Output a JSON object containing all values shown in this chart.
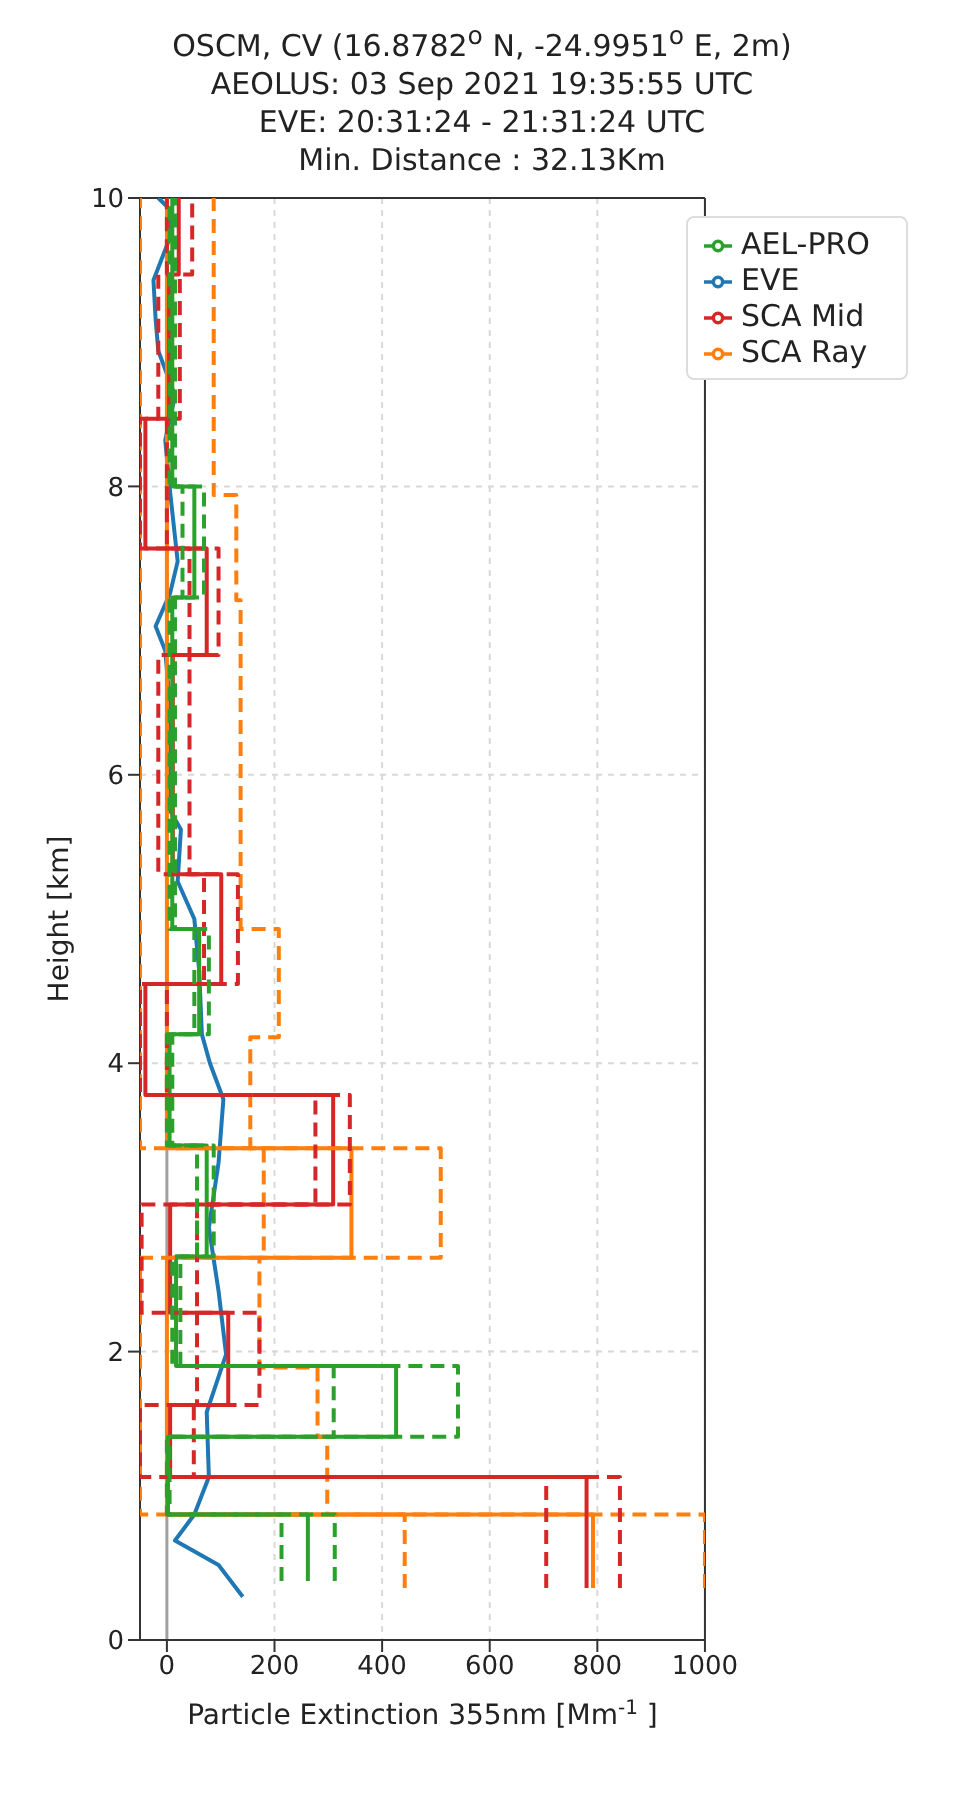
{
  "chart_data": {
    "type": "line",
    "title": "OSCM, CV (16.8782$^{o}$ N, -24.9951$^{o}$ E, 2m)",
    "subtitle": "AEOLUS: 03 Sep 2021 19:35:55 UTC\nEVE: 20:31:24 - 21:31:24 UTC\nMin. Distance : 32.13Km",
    "xlabel": "Particle Extinction 355nm [Mm$^{-1}$]",
    "ylabel": "Height [km]",
    "xlim": [
      -50,
      1000
    ],
    "xticks": [
      0,
      200,
      400,
      600,
      800,
      1000
    ],
    "ylim": [
      0,
      10
    ],
    "yticks": [
      0,
      2,
      4,
      6,
      8,
      10
    ],
    "grid": true,
    "legend": "top right",
    "marker": "none",
    "ref_lines": [
      {
        "axis": "x",
        "value": 0,
        "color": "#a0a0a0"
      }
    ],
    "series": [
      {
        "name": "EVE",
        "color": "#1f77b4",
        "line_style": "solid",
        "x": [
          141,
          96,
          15,
          51,
          78,
          74,
          110,
          96,
          78,
          96,
          105,
          80,
          65,
          60,
          51,
          20,
          26,
          6,
          6,
          6,
          -3,
          -21,
          6,
          20,
          6,
          -3,
          15,
          -16,
          -21,
          -25,
          2,
          6,
          -16
        ],
        "values": [
          0.3,
          0.52,
          0.69,
          0.87,
          1.13,
          1.58,
          1.98,
          2.42,
          2.86,
          3.31,
          3.75,
          4.0,
          4.2,
          4.64,
          5.0,
          5.26,
          5.62,
          5.75,
          6.15,
          6.46,
          6.86,
          7.03,
          7.26,
          7.48,
          7.96,
          8.32,
          8.63,
          8.94,
          9.16,
          9.43,
          9.69,
          9.92,
          10
        ]
      },
      {
        "name": "SCA Ray",
        "color": "#ff7f0e",
        "line_style": "solid",
        "x": [
          792,
          792,
          0,
          0,
          343,
          343,
          0,
          0
        ],
        "values": [
          0.36,
          0.87,
          0.87,
          2.65,
          2.65,
          3.41,
          3.41,
          10
        ]
      },
      {
        "name": "SCA Mid",
        "color": "#d62728",
        "line_style": "solid",
        "x": [
          780,
          780,
          6,
          6,
          114,
          114,
          6,
          6,
          309,
          309,
          -40,
          -40,
          101,
          101,
          11,
          11,
          74,
          74,
          -40,
          -40,
          4,
          4,
          22,
          22
        ],
        "values": [
          0.36,
          1.13,
          1.13,
          1.63,
          1.63,
          2.27,
          2.27,
          3.02,
          3.02,
          3.78,
          3.78,
          4.55,
          4.55,
          5.31,
          5.31,
          6.83,
          6.83,
          7.57,
          7.57,
          8.47,
          8.47,
          9.47,
          9.47,
          10
        ]
      },
      {
        "name": "AEL-PRO",
        "color": "#2ca02c",
        "line_style": "solid",
        "x": [
          262,
          262,
          2,
          2,
          426,
          426,
          17,
          17,
          74,
          74,
          5,
          5,
          60,
          60,
          10,
          10,
          51,
          51,
          10,
          10
        ],
        "values": [
          0.41,
          0.87,
          0.87,
          1.41,
          1.41,
          1.9,
          1.9,
          2.66,
          2.66,
          3.43,
          3.43,
          4.2,
          4.2,
          4.93,
          4.93,
          7.23,
          7.23,
          8.0,
          8.0,
          10
        ]
      },
      {
        "color": "#ff7f0e",
        "line_style": "dashed",
        "x": [
          442,
          442,
          -50,
          -50,
          180,
          180,
          -50,
          -50
        ],
        "values": [
          0.36,
          0.87,
          0.87,
          2.65,
          2.65,
          3.41,
          3.41,
          10
        ]
      },
      {
        "color": "#ff7f0e",
        "line_style": "dashed",
        "x": [
          1000,
          1000,
          298,
          298,
          280,
          280,
          172,
          172,
          509,
          509,
          155,
          155,
          208,
          208,
          137,
          137,
          129,
          129,
          87,
          87
        ],
        "values": [
          0.36,
          0.87,
          0.87,
          1.41,
          1.41,
          1.89,
          1.89,
          2.65,
          2.65,
          3.41,
          3.41,
          4.18,
          4.18,
          4.93,
          4.93,
          7.21,
          7.21,
          7.94,
          7.94,
          10
        ]
      },
      {
        "color": "#d62728",
        "line_style": "dashed",
        "x": [
          705,
          705,
          -50,
          -50,
          56,
          56,
          -47,
          -47,
          276,
          276,
          -50,
          -50,
          69,
          69,
          -16,
          -16,
          42,
          42,
          -50,
          -50,
          -16,
          -16,
          0,
          0
        ],
        "values": [
          0.36,
          1.13,
          1.13,
          1.63,
          1.63,
          2.27,
          2.27,
          3.02,
          3.02,
          3.78,
          3.78,
          4.55,
          4.55,
          5.31,
          5.31,
          6.83,
          6.83,
          7.57,
          7.57,
          8.47,
          8.47,
          9.47,
          9.47,
          10
        ]
      },
      {
        "color": "#d62728",
        "line_style": "dashed",
        "x": [
          842,
          842,
          50,
          50,
          172,
          172,
          56,
          56,
          340,
          340,
          0,
          0,
          132,
          132,
          42,
          42,
          96,
          96,
          0,
          0,
          24,
          24,
          47,
          47
        ],
        "values": [
          0.36,
          1.13,
          1.13,
          1.63,
          1.63,
          2.27,
          2.27,
          3.02,
          3.02,
          3.78,
          3.78,
          4.55,
          4.55,
          5.31,
          5.31,
          6.83,
          6.83,
          7.57,
          7.57,
          8.47,
          8.47,
          9.47,
          9.47,
          10
        ]
      },
      {
        "color": "#2ca02c",
        "line_style": "dashed",
        "x": [
          213,
          213,
          0,
          0,
          310,
          310,
          10,
          10,
          56,
          56,
          0,
          0,
          51,
          51,
          5,
          5,
          29,
          29,
          5,
          5
        ],
        "values": [
          0.41,
          0.87,
          0.87,
          1.41,
          1.41,
          1.9,
          1.9,
          2.66,
          2.66,
          3.43,
          3.43,
          4.2,
          4.2,
          4.93,
          4.93,
          7.23,
          7.23,
          8.0,
          8.0,
          10
        ]
      },
      {
        "color": "#2ca02c",
        "line_style": "dashed",
        "x": [
          312,
          312,
          5,
          5,
          541,
          541,
          25,
          25,
          87,
          87,
          10,
          10,
          78,
          78,
          15,
          15,
          69,
          69,
          15,
          15
        ],
        "values": [
          0.41,
          0.87,
          0.87,
          1.41,
          1.41,
          1.9,
          1.9,
          2.66,
          2.66,
          3.43,
          3.43,
          4.2,
          4.2,
          4.93,
          4.93,
          7.23,
          7.23,
          8.0,
          8.0,
          10
        ]
      }
    ]
  }
}
